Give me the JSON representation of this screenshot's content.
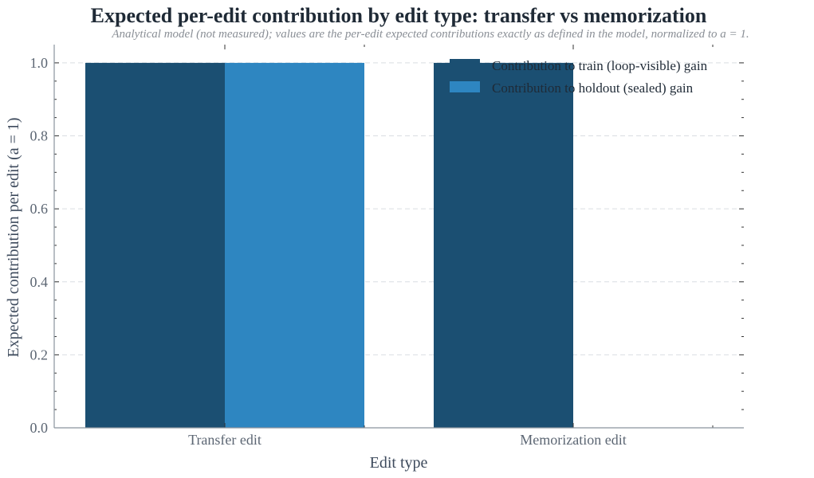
{
  "chart_data": {
    "type": "bar",
    "title": "Expected per-edit contribution by edit type: transfer vs memorization",
    "subtitle": "Analytical model (not measured); values are the per-edit expected contributions exactly as defined in the model, normalized to a = 1.",
    "xlabel": "Edit type",
    "ylabel": "Expected contribution per edit (a = 1)",
    "categories": [
      "Transfer edit",
      "Memorization edit"
    ],
    "series": [
      {
        "name": "Contribution to train (loop-visible) gain",
        "color": "#1b4f72",
        "values": [
          1.0,
          1.0
        ]
      },
      {
        "name": "Contribution to holdout (sealed) gain",
        "color": "#2e86c1",
        "values": [
          1.0,
          0.0
        ]
      }
    ],
    "ylim": [
      0,
      1.05
    ],
    "yticks": [
      "0.0",
      "0.2",
      "0.4",
      "0.6",
      "0.8",
      "1.0"
    ],
    "grid": true,
    "legend_position": "top-right"
  }
}
